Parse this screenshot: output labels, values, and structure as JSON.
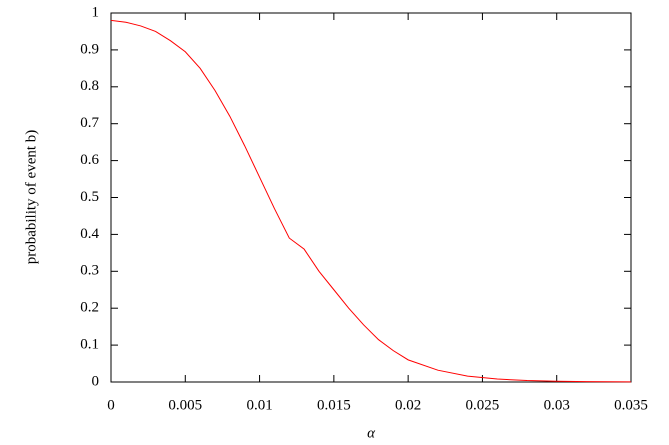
{
  "chart_data": {
    "type": "line",
    "xlabel": "α",
    "ylabel": "probability of event b)",
    "x": [
      0,
      0.001,
      0.002,
      0.003,
      0.004,
      0.005,
      0.006,
      0.007,
      0.008,
      0.009,
      0.01,
      0.011,
      0.012,
      0.013,
      0.014,
      0.015,
      0.016,
      0.017,
      0.018,
      0.019,
      0.02,
      0.022,
      0.024,
      0.026,
      0.028,
      0.03,
      0.032,
      0.035
    ],
    "values": [
      0.98,
      0.975,
      0.965,
      0.95,
      0.925,
      0.895,
      0.85,
      0.79,
      0.72,
      0.64,
      0.555,
      0.47,
      0.39,
      0.36,
      0.3,
      0.25,
      0.2,
      0.155,
      0.115,
      0.085,
      0.06,
      0.032,
      0.016,
      0.008,
      0.004,
      0.002,
      0.001,
      0.0002
    ],
    "color": "#ff0000",
    "xlim": [
      0,
      0.035
    ],
    "xticks": [
      0,
      0.005,
      0.01,
      0.015,
      0.02,
      0.025,
      0.03,
      0.035
    ],
    "ylim": [
      0,
      1
    ],
    "yticks": [
      0,
      0.1,
      0.2,
      0.3,
      0.4,
      0.5,
      0.6,
      0.7,
      0.8,
      0.9,
      1
    ],
    "grid": false
  }
}
